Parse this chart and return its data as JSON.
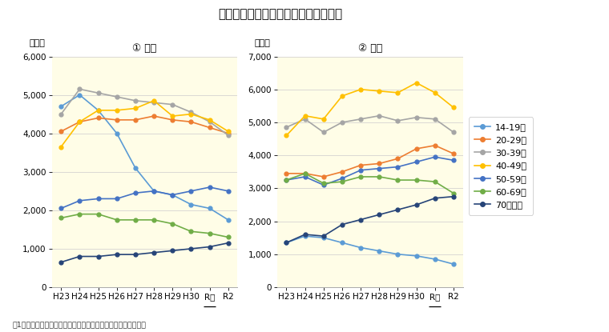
{
  "title": "傷害・暴行の年齢層別検挙人員の推移",
  "subtitle_left": "① 障害",
  "subtitle_right": "② 暴行",
  "unit_label": "（人）",
  "footnote": "注1「令和２年の刑法犯に関する統計資料」（警察庁）より作成",
  "x_labels": [
    "H23",
    "H24",
    "H25",
    "H26",
    "H27",
    "H28",
    "H29",
    "H30",
    "R元",
    "R2"
  ],
  "r_underline_idx": 8,
  "legend_labels": [
    "14-19歳",
    "20-29歳",
    "30-39歳",
    "40-49歳",
    "50-59歳",
    "60-69歳",
    "70歳以上"
  ],
  "colors": [
    "#5B9BD5",
    "#ED7D31",
    "#A5A5A5",
    "#FFC000",
    "#4472C4",
    "#70AD47",
    "#264478"
  ],
  "shougai": {
    "14-19": [
      4700,
      5000,
      4600,
      4000,
      3100,
      2500,
      2400,
      2150,
      2050,
      1750
    ],
    "20-29": [
      4050,
      4300,
      4400,
      4350,
      4350,
      4450,
      4350,
      4300,
      4150,
      4000
    ],
    "30-39": [
      4500,
      5150,
      5050,
      4950,
      4850,
      4800,
      4750,
      4550,
      4300,
      3950
    ],
    "40-49": [
      3650,
      4300,
      4600,
      4600,
      4650,
      4850,
      4450,
      4500,
      4350,
      4050
    ],
    "50-59": [
      2050,
      2250,
      2300,
      2300,
      2450,
      2500,
      2400,
      2500,
      2600,
      2500
    ],
    "60-69": [
      1800,
      1900,
      1900,
      1750,
      1750,
      1750,
      1650,
      1450,
      1400,
      1300
    ],
    "70+": [
      650,
      800,
      800,
      850,
      850,
      900,
      950,
      1000,
      1050,
      1150
    ]
  },
  "boko": {
    "14-19": [
      1350,
      1550,
      1500,
      1350,
      1200,
      1100,
      1000,
      950,
      850,
      700
    ],
    "20-29": [
      3450,
      3450,
      3350,
      3500,
      3700,
      3750,
      3900,
      4200,
      4300,
      4050
    ],
    "30-39": [
      4850,
      5100,
      4700,
      5000,
      5100,
      5200,
      5050,
      5150,
      5100,
      4700
    ],
    "40-49": [
      4600,
      5200,
      5100,
      5800,
      6000,
      5950,
      5900,
      6200,
      5900,
      5450
    ],
    "50-59": [
      3250,
      3350,
      3100,
      3300,
      3550,
      3600,
      3650,
      3800,
      3950,
      3850
    ],
    "60-69": [
      3250,
      3450,
      3150,
      3200,
      3350,
      3350,
      3250,
      3250,
      3200,
      2850
    ],
    "70+": [
      1350,
      1600,
      1550,
      1900,
      2050,
      2200,
      2350,
      2500,
      2700,
      2750
    ]
  },
  "ylim_left": [
    0,
    6000
  ],
  "ylim_right": [
    0,
    7000
  ],
  "yticks_left": [
    0,
    1000,
    2000,
    3000,
    4000,
    5000,
    6000
  ],
  "yticks_right": [
    0,
    1000,
    2000,
    3000,
    4000,
    5000,
    6000,
    7000
  ],
  "bg_color": "#FFFDE7",
  "outer_bg": "#FFFFFF",
  "grid_color": "#CCCCCC"
}
